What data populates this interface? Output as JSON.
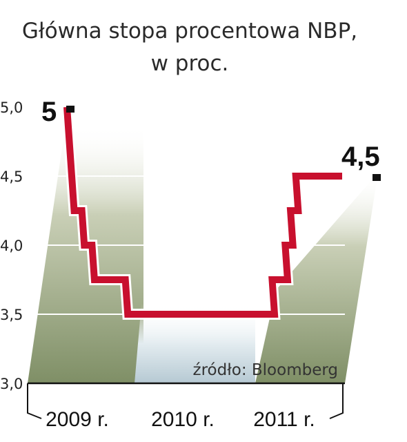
{
  "chart_data": {
    "type": "line",
    "title_line1": "Główna stopa procentowa NBP,",
    "title_line2": "w proc.",
    "source": "źródło: Bloomberg",
    "y_ticks": [
      "3,0",
      "3,5",
      "4,0",
      "4,5",
      "5,0"
    ],
    "y_tick_values": [
      3.0,
      3.5,
      4.0,
      4.5,
      5.0
    ],
    "ylim": [
      3.0,
      5.0
    ],
    "x_labels": [
      "2009 r.",
      "2010 r.",
      "2011 r."
    ],
    "series": [
      {
        "values": [
          {
            "t": "2009-01",
            "v": 5.0
          },
          {
            "t": "2009-01",
            "v": 4.25
          },
          {
            "t": "2009-02",
            "v": 4.0
          },
          {
            "t": "2009-03",
            "v": 3.75
          },
          {
            "t": "2009-07",
            "v": 3.5
          },
          {
            "t": "2011-01",
            "v": 3.5
          },
          {
            "t": "2011-02",
            "v": 3.75
          },
          {
            "t": "2011-04",
            "v": 4.0
          },
          {
            "t": "2011-05",
            "v": 4.25
          },
          {
            "t": "2011-06",
            "v": 4.5
          },
          {
            "t": "2011-12",
            "v": 4.5
          }
        ]
      }
    ],
    "labels": {
      "start": "5",
      "end": "4,5"
    },
    "colors": {
      "line": "#c8102e",
      "band_2009": "#8a9a72",
      "band_2010": "#b9ccd6",
      "band_2011": "#8a9a72",
      "grid": "#ffffff"
    }
  }
}
